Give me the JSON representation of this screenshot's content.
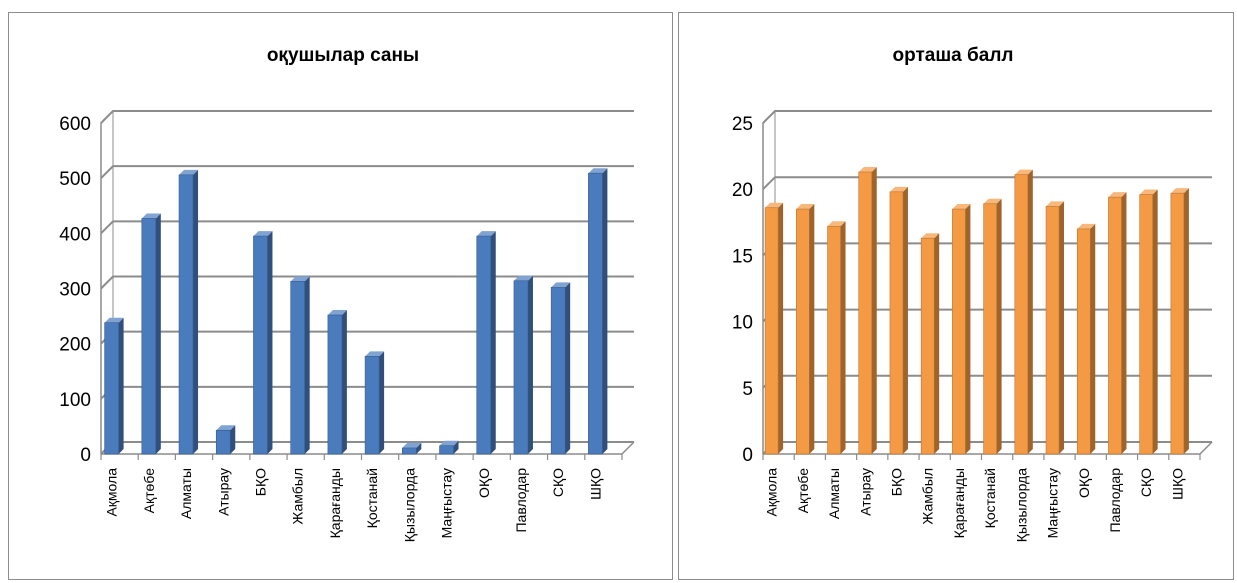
{
  "chart_data": [
    {
      "type": "bar",
      "title": "оқушылар саны",
      "xlabel": "",
      "ylabel": "",
      "categories": [
        "Ақмола",
        "Ақтөбе",
        "Алматы",
        "Атырау",
        "БҚО",
        "Жамбыл",
        "Қарағанды",
        "Қостанай",
        "Қызылорда",
        "Маңғыстау",
        "ОҚО",
        "Павлодар",
        "СҚО",
        "ШҚО"
      ],
      "values": [
        238,
        427,
        506,
        43,
        395,
        313,
        252,
        177,
        11,
        15,
        395,
        314,
        302,
        509
      ],
      "ylim": [
        0,
        600
      ],
      "yticks": [
        "0",
        "100",
        "200",
        "300",
        "400",
        "500",
        "600"
      ],
      "grid": true,
      "legend": "none",
      "color": "#4a7bbd"
    },
    {
      "type": "bar",
      "title": "орташа балл",
      "xlabel": "",
      "ylabel": "",
      "categories": [
        "Ақмола",
        "Ақтөбе",
        "Алматы",
        "Атырау",
        "БҚО",
        "Жамбыл",
        "Қарағанды",
        "Қостанай",
        "Қызылорда",
        "Маңғыстау",
        "ОҚО",
        "Павлодар",
        "СҚО",
        "ШҚО"
      ],
      "values": [
        18.6,
        18.5,
        17.2,
        21.3,
        19.8,
        16.3,
        18.5,
        18.9,
        21.1,
        18.7,
        17.0,
        19.4,
        19.6,
        19.7
      ],
      "ylim": [
        0,
        25
      ],
      "yticks": [
        "0",
        "5",
        "10",
        "15",
        "20",
        "25"
      ],
      "grid": true,
      "legend": "none",
      "color": "#f59a44"
    }
  ]
}
